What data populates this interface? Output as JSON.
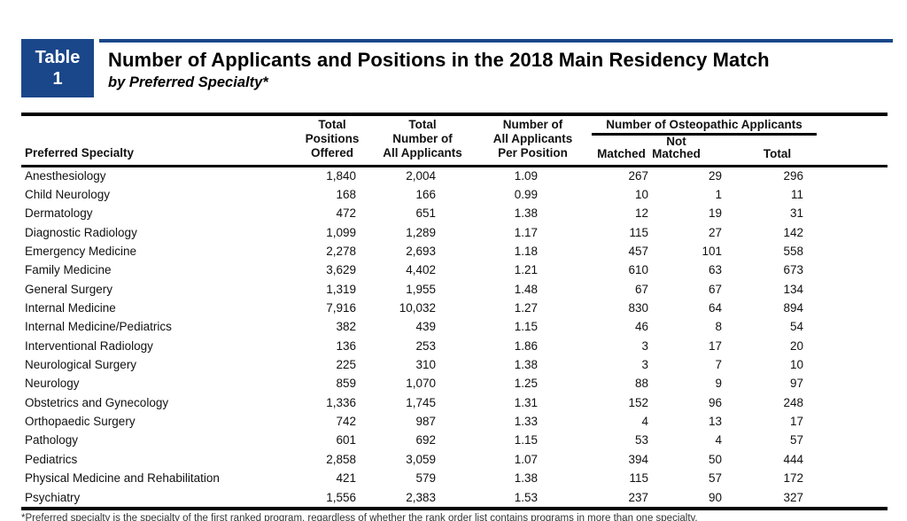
{
  "colors": {
    "accent_blue": "#1A4789",
    "text": "#111111",
    "rule": "#000000"
  },
  "badge": {
    "word": "Table",
    "number": "1"
  },
  "title": {
    "main": "Number of Applicants and Positions in the 2018 Main Residency Match",
    "sub": "by Preferred Specialty*"
  },
  "table": {
    "headers": {
      "specialty": "Preferred Specialty",
      "positions": "Total\nPositions\nOffered",
      "applicants": "Total\nNumber of\nAll Applicants",
      "per_position": "Number of\nAll Applicants\nPer Position",
      "osteopathic_group": "Number of Osteopathic Applicants",
      "matched": "Matched",
      "not_matched": "Not\nMatched",
      "total": "Total"
    },
    "rows": [
      {
        "specialty": "Anesthesiology",
        "positions": "1,840",
        "applicants": "2,004",
        "per_position": "1.09",
        "matched": "267",
        "not_matched": "29",
        "total": "296"
      },
      {
        "specialty": "Child Neurology",
        "positions": "168",
        "applicants": "166",
        "per_position": "0.99",
        "matched": "10",
        "not_matched": "1",
        "total": "11"
      },
      {
        "specialty": "Dermatology",
        "positions": "472",
        "applicants": "651",
        "per_position": "1.38",
        "matched": "12",
        "not_matched": "19",
        "total": "31"
      },
      {
        "specialty": "Diagnostic Radiology",
        "positions": "1,099",
        "applicants": "1,289",
        "per_position": "1.17",
        "matched": "115",
        "not_matched": "27",
        "total": "142"
      },
      {
        "specialty": "Emergency Medicine",
        "positions": "2,278",
        "applicants": "2,693",
        "per_position": "1.18",
        "matched": "457",
        "not_matched": "101",
        "total": "558"
      },
      {
        "specialty": "Family Medicine",
        "positions": "3,629",
        "applicants": "4,402",
        "per_position": "1.21",
        "matched": "610",
        "not_matched": "63",
        "total": "673"
      },
      {
        "specialty": "General Surgery",
        "positions": "1,319",
        "applicants": "1,955",
        "per_position": "1.48",
        "matched": "67",
        "not_matched": "67",
        "total": "134"
      },
      {
        "specialty": "Internal Medicine",
        "positions": "7,916",
        "applicants": "10,032",
        "per_position": "1.27",
        "matched": "830",
        "not_matched": "64",
        "total": "894"
      },
      {
        "specialty": "Internal Medicine/Pediatrics",
        "positions": "382",
        "applicants": "439",
        "per_position": "1.15",
        "matched": "46",
        "not_matched": "8",
        "total": "54"
      },
      {
        "specialty": "Interventional Radiology",
        "positions": "136",
        "applicants": "253",
        "per_position": "1.86",
        "matched": "3",
        "not_matched": "17",
        "total": "20"
      },
      {
        "specialty": "Neurological Surgery",
        "positions": "225",
        "applicants": "310",
        "per_position": "1.38",
        "matched": "3",
        "not_matched": "7",
        "total": "10"
      },
      {
        "specialty": "Neurology",
        "positions": "859",
        "applicants": "1,070",
        "per_position": "1.25",
        "matched": "88",
        "not_matched": "9",
        "total": "97"
      },
      {
        "specialty": "Obstetrics and Gynecology",
        "positions": "1,336",
        "applicants": "1,745",
        "per_position": "1.31",
        "matched": "152",
        "not_matched": "96",
        "total": "248"
      },
      {
        "specialty": "Orthopaedic Surgery",
        "positions": "742",
        "applicants": "987",
        "per_position": "1.33",
        "matched": "4",
        "not_matched": "13",
        "total": "17"
      },
      {
        "specialty": "Pathology",
        "positions": "601",
        "applicants": "692",
        "per_position": "1.15",
        "matched": "53",
        "not_matched": "4",
        "total": "57"
      },
      {
        "specialty": "Pediatrics",
        "positions": "2,858",
        "applicants": "3,059",
        "per_position": "1.07",
        "matched": "394",
        "not_matched": "50",
        "total": "444"
      },
      {
        "specialty": "Physical Medicine and Rehabilitation",
        "positions": "421",
        "applicants": "579",
        "per_position": "1.38",
        "matched": "115",
        "not_matched": "57",
        "total": "172"
      },
      {
        "specialty": "Psychiatry",
        "positions": "1,556",
        "applicants": "2,383",
        "per_position": "1.53",
        "matched": "237",
        "not_matched": "90",
        "total": "327"
      }
    ]
  },
  "footnote": "*Preferred specialty is the specialty of the first ranked program, regardless of whether the rank order list contains programs in more than one specialty."
}
